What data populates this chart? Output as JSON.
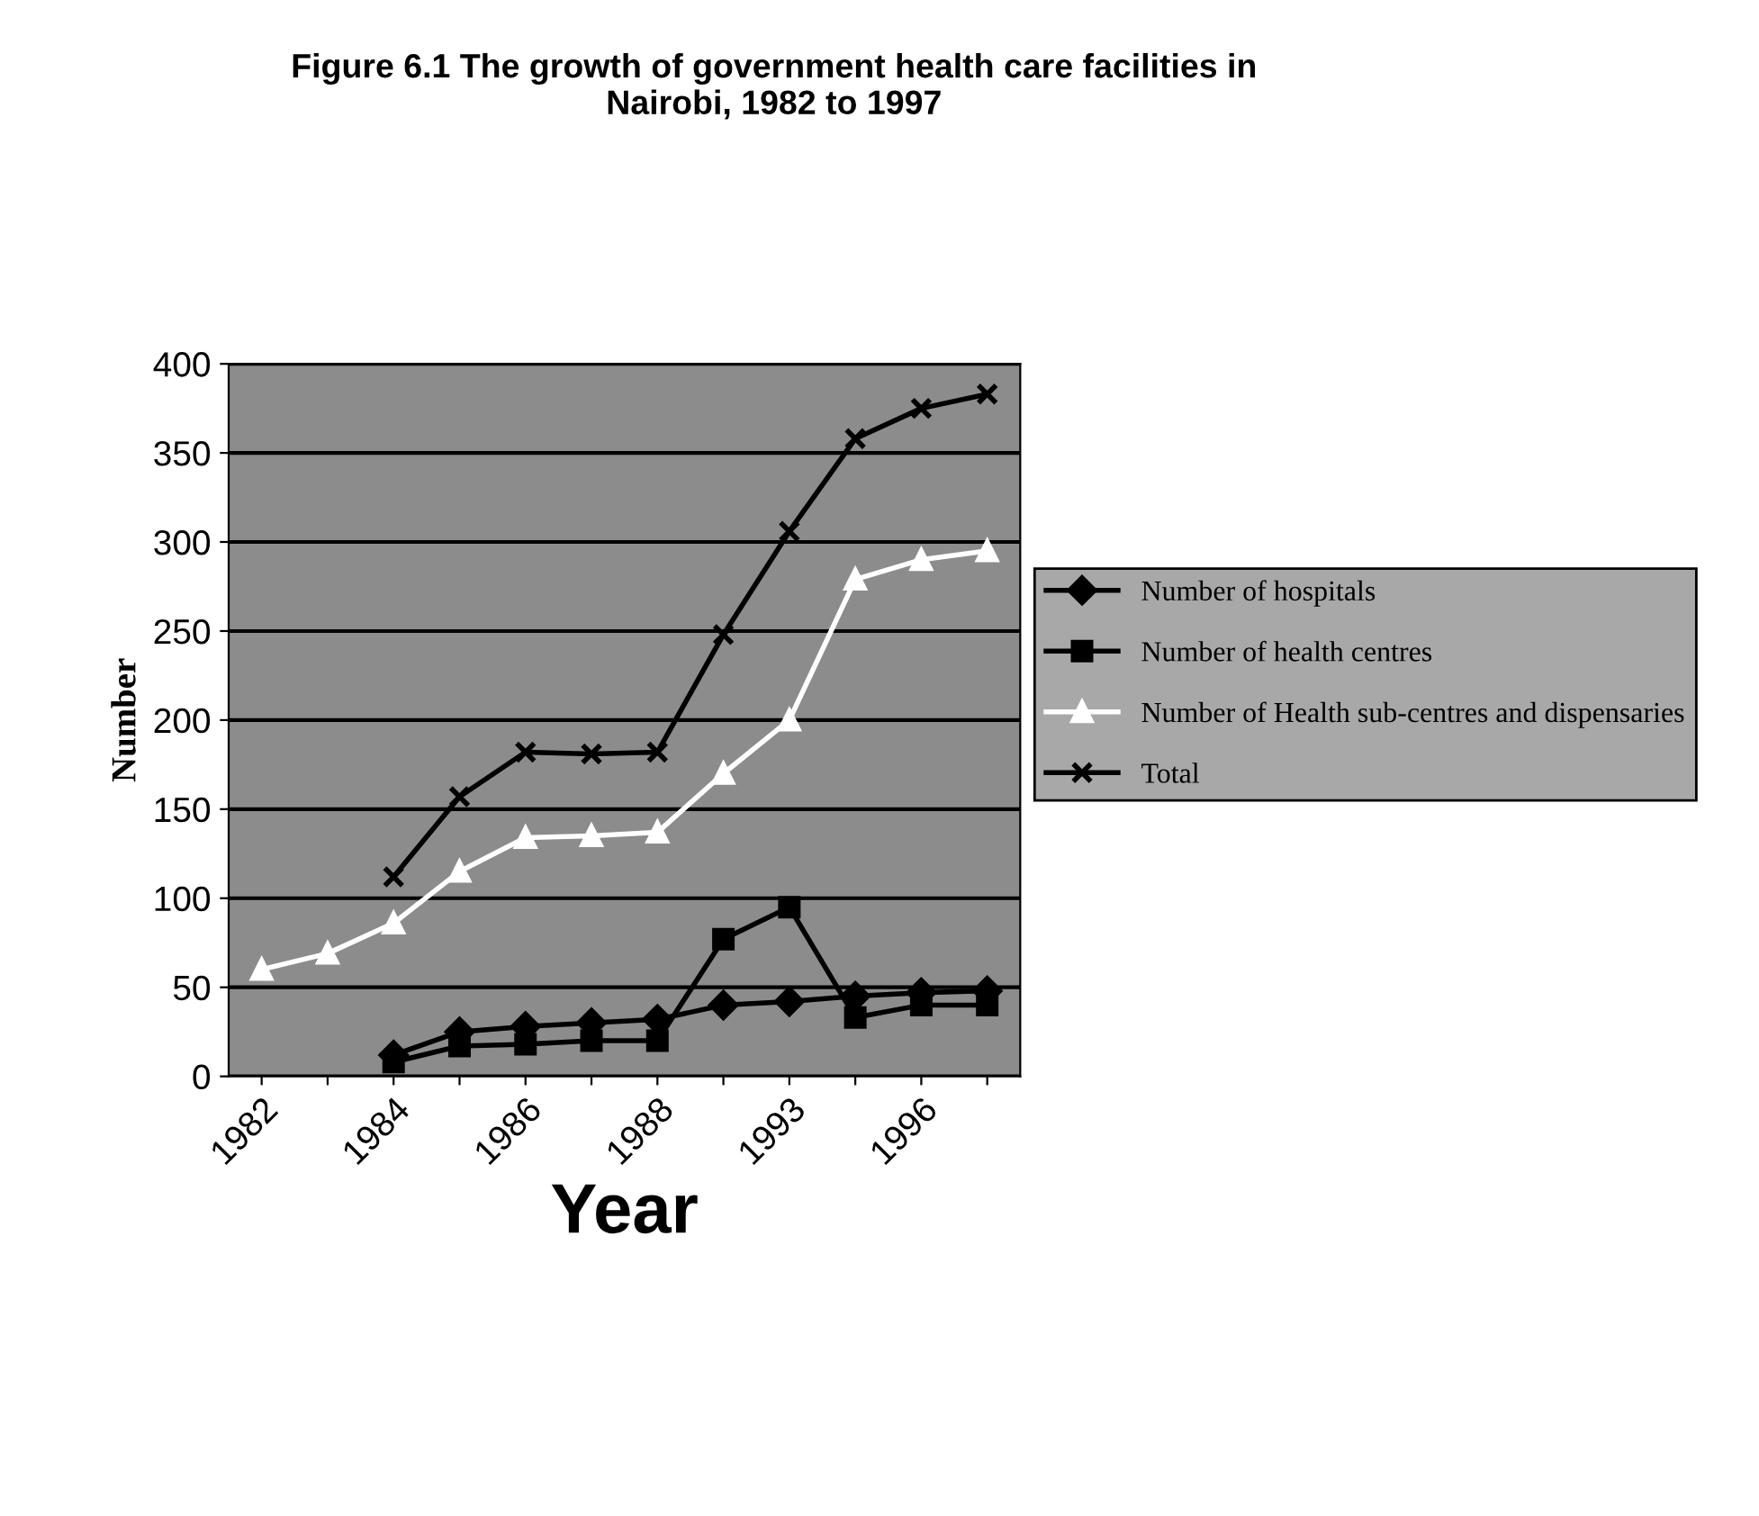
{
  "chart_data": {
    "type": "line",
    "title": "Figure 6.1 The growth of government health care facilities in\nNairobi, 1982 to 1997",
    "xlabel": "Year",
    "ylabel": "Number",
    "categories": [
      "1982",
      null,
      "1984",
      null,
      "1986",
      null,
      "1988",
      null,
      "1993",
      null,
      "1996",
      null
    ],
    "ylim": [
      0,
      400
    ],
    "yticks": [
      0,
      50,
      100,
      150,
      200,
      250,
      300,
      350,
      400
    ],
    "grid": "y",
    "legend": "right",
    "series": [
      {
        "name": "Number of hospitals",
        "color": "#000000",
        "marker": "diamond",
        "values": [
          null,
          null,
          12,
          25,
          28,
          30,
          32,
          40,
          42,
          45,
          47,
          48
        ]
      },
      {
        "name": "Number of health centres",
        "color": "#000000",
        "marker": "square",
        "values": [
          null,
          null,
          8,
          17,
          18,
          20,
          20,
          77,
          95,
          33,
          40,
          40
        ]
      },
      {
        "name": "Number of Health sub-centres and dispensaries",
        "color": "#ffffff",
        "marker": "triangle",
        "values": [
          60,
          69,
          86,
          115,
          134,
          135,
          137,
          170,
          200,
          279,
          290,
          295
        ]
      },
      {
        "name": "Total",
        "color": "#000000",
        "marker": "cross",
        "values": [
          null,
          null,
          112,
          157,
          182,
          181,
          182,
          248,
          306,
          358,
          375,
          383
        ]
      }
    ]
  }
}
